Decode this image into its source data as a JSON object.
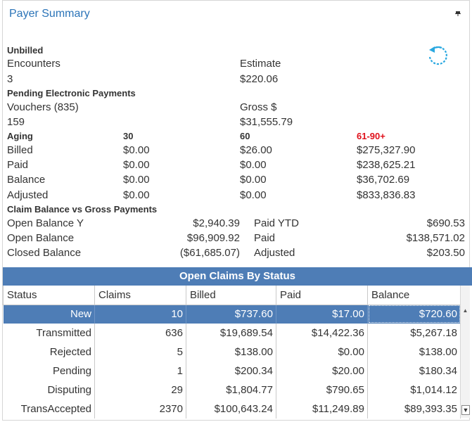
{
  "panel": {
    "title": "Payer Summary"
  },
  "unbilled": {
    "heading": "Unbilled",
    "encounters_label": "Encounters",
    "encounters_value": "3",
    "estimate_label": "Estimate",
    "estimate_value": "$220.06"
  },
  "pending": {
    "heading": "Pending Electronic Payments",
    "vouchers_label": "Vouchers (835)",
    "vouchers_value": "159",
    "gross_label": "Gross $",
    "gross_value": "$31,555.79"
  },
  "aging": {
    "heading": "Aging",
    "col_30": "30",
    "col_60": "60",
    "col_61_90": "61-90+",
    "rows": [
      {
        "label": "Billed",
        "v30": "$0.00",
        "v60": "$26.00",
        "v90": "$275,327.90"
      },
      {
        "label": "Paid",
        "v30": "$0.00",
        "v60": "$0.00",
        "v90": "$238,625.21"
      },
      {
        "label": "Balance",
        "v30": "$0.00",
        "v60": "$0.00",
        "v90": "$36,702.69"
      },
      {
        "label": "Adjusted",
        "v30": "$0.00",
        "v60": "$0.00",
        "v90": "$833,836.83"
      }
    ]
  },
  "claim_balance": {
    "heading": "Claim Balance vs Gross Payments",
    "rows": [
      {
        "label": "Open Balance Y",
        "value": "$2,940.39",
        "label2": "Paid YTD",
        "value2": "$690.53"
      },
      {
        "label": "Open Balance",
        "value": "$96,909.92",
        "label2": "Paid",
        "value2": "$138,571.02"
      },
      {
        "label": "Closed Balance",
        "value": "($61,685.07)",
        "label2": "Adjusted",
        "value2": "$203.50"
      }
    ]
  },
  "open_claims": {
    "title": "Open Claims By Status",
    "columns": [
      "Status",
      "Claims",
      "Billed",
      "Paid",
      "Balance"
    ],
    "rows": [
      [
        "New",
        "10",
        "$737.60",
        "$17.00",
        "$720.60"
      ],
      [
        "Transmitted",
        "636",
        "$19,689.54",
        "$14,422.36",
        "$5,267.18"
      ],
      [
        "Rejected",
        "5",
        "$138.00",
        "$0.00",
        "$138.00"
      ],
      [
        "Pending",
        "1",
        "$200.34",
        "$20.00",
        "$180.34"
      ],
      [
        "Disputing",
        "29",
        "$1,804.77",
        "$790.65",
        "$1,014.12"
      ],
      [
        "TransAccepted",
        "2370",
        "$100,643.24",
        "$11,249.89",
        "$89,393.35"
      ]
    ],
    "selected_row": 0
  },
  "icons": {
    "pin": "pin-icon",
    "refresh": "refresh-icon",
    "scroll_up": "scroll-up-arrow-icon",
    "scroll_down": "scroll-down-arrow-icon"
  },
  "colors": {
    "title": "#2b74b8",
    "header_bg": "#4e7db6",
    "accent_red": "#e0101a",
    "refresh": "#2aa8e0"
  }
}
